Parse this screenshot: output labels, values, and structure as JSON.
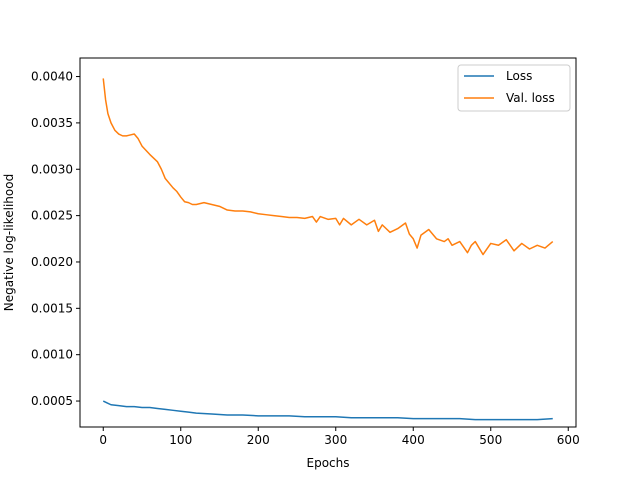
{
  "chart_data": {
    "type": "line",
    "title": "",
    "xlabel": "Epochs",
    "ylabel": "Negative log-likelihood",
    "xlim": [
      -30,
      610
    ],
    "ylim": [
      0.00022,
      0.0042
    ],
    "xticks": [
      0,
      100,
      200,
      300,
      400,
      500,
      600
    ],
    "xtick_labels": [
      "0",
      "100",
      "200",
      "300",
      "400",
      "500",
      "600"
    ],
    "yticks": [
      0.0005,
      0.001,
      0.0015,
      0.002,
      0.0025,
      0.003,
      0.0035,
      0.004
    ],
    "ytick_labels": [
      "0.0005",
      "0.0010",
      "0.0015",
      "0.0020",
      "0.0025",
      "0.0030",
      "0.0035",
      "0.0040"
    ],
    "grid": false,
    "legend_position": "top-right",
    "series": [
      {
        "name": "Loss",
        "color": "#1f77b4",
        "x": [
          0,
          5,
          10,
          20,
          30,
          40,
          50,
          60,
          70,
          80,
          90,
          100,
          110,
          120,
          140,
          160,
          180,
          200,
          220,
          240,
          260,
          280,
          300,
          320,
          340,
          360,
          380,
          400,
          420,
          440,
          460,
          480,
          500,
          520,
          540,
          560,
          580
        ],
        "y": [
          0.0005,
          0.00048,
          0.00046,
          0.00045,
          0.00044,
          0.00044,
          0.00043,
          0.00043,
          0.00042,
          0.00041,
          0.0004,
          0.00039,
          0.00038,
          0.00037,
          0.00036,
          0.00035,
          0.00035,
          0.00034,
          0.00034,
          0.00034,
          0.00033,
          0.00033,
          0.00033,
          0.00032,
          0.00032,
          0.00032,
          0.00032,
          0.00031,
          0.00031,
          0.00031,
          0.00031,
          0.0003,
          0.0003,
          0.0003,
          0.0003,
          0.0003,
          0.00031
        ]
      },
      {
        "name": "Val. loss",
        "color": "#ff7f0e",
        "x": [
          0,
          3,
          6,
          10,
          15,
          20,
          25,
          30,
          35,
          40,
          45,
          50,
          60,
          70,
          75,
          80,
          90,
          95,
          100,
          105,
          110,
          115,
          120,
          130,
          140,
          150,
          160,
          170,
          180,
          190,
          200,
          210,
          220,
          230,
          240,
          250,
          260,
          270,
          275,
          280,
          290,
          300,
          305,
          310,
          320,
          330,
          340,
          350,
          355,
          360,
          370,
          380,
          390,
          395,
          400,
          405,
          410,
          420,
          430,
          440,
          445,
          450,
          460,
          470,
          475,
          480,
          490,
          500,
          510,
          520,
          530,
          540,
          550,
          560,
          570,
          580
        ],
        "y": [
          0.00398,
          0.00375,
          0.0036,
          0.0035,
          0.00342,
          0.00338,
          0.00336,
          0.00336,
          0.00337,
          0.00338,
          0.00333,
          0.00325,
          0.00316,
          0.00308,
          0.003,
          0.0029,
          0.0028,
          0.00276,
          0.0027,
          0.00265,
          0.00264,
          0.00262,
          0.00262,
          0.00264,
          0.00262,
          0.0026,
          0.00256,
          0.00255,
          0.00255,
          0.00254,
          0.00252,
          0.00251,
          0.0025,
          0.00249,
          0.00248,
          0.00248,
          0.00247,
          0.00249,
          0.00243,
          0.00249,
          0.00246,
          0.00247,
          0.0024,
          0.00247,
          0.0024,
          0.00246,
          0.0024,
          0.00245,
          0.00233,
          0.0024,
          0.00232,
          0.00236,
          0.00242,
          0.0023,
          0.00225,
          0.00215,
          0.00229,
          0.00235,
          0.00225,
          0.00222,
          0.00225,
          0.00218,
          0.00222,
          0.0021,
          0.00218,
          0.00222,
          0.00208,
          0.0022,
          0.00218,
          0.00224,
          0.00212,
          0.0022,
          0.00214,
          0.00218,
          0.00215,
          0.00222
        ]
      }
    ]
  }
}
